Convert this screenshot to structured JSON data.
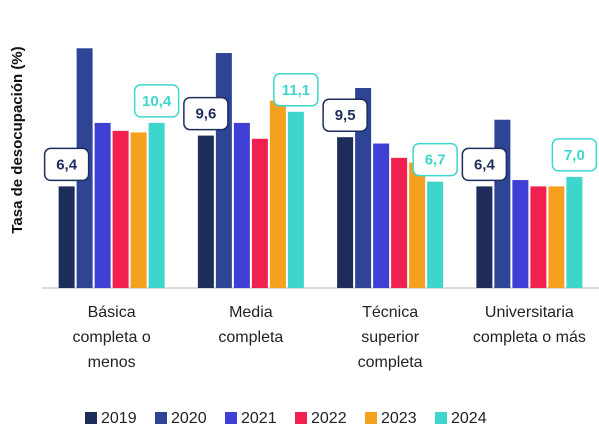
{
  "chart_data": {
    "type": "bar",
    "y_label": "Tasa de desocupación (%)",
    "categories": [
      "Básica\ncompleta o\nmenos",
      "Media\ncompleta",
      "Técnica\nsuperior\ncompleta",
      "Universitaria\ncompleta o más"
    ],
    "series": [
      {
        "name": "2019",
        "color": "#1f2d5a",
        "values": [
          6.4,
          9.6,
          9.5,
          6.4
        ],
        "value_labels": [
          "6,4",
          "9,6",
          "9,5",
          "6,4"
        ]
      },
      {
        "name": "2020",
        "color": "#2e4495",
        "values": [
          15.1,
          14.8,
          12.6,
          10.6
        ]
      },
      {
        "name": "2021",
        "color": "#3f3fd6",
        "values": [
          10.4,
          10.4,
          9.1,
          6.8
        ]
      },
      {
        "name": "2022",
        "color": "#f0204f",
        "values": [
          9.9,
          9.4,
          8.2,
          6.4
        ]
      },
      {
        "name": "2023",
        "color": "#f5a01e",
        "values": [
          9.8,
          11.8,
          7.9,
          6.4
        ]
      },
      {
        "name": "2024",
        "color": "#3ed6cc",
        "values": [
          10.4,
          11.1,
          6.7,
          7.0
        ],
        "value_labels": [
          "10,4",
          "11,1",
          "6,7",
          "7,0"
        ]
      }
    ],
    "ylim": [
      0,
      16
    ],
    "legend": "bottom"
  }
}
